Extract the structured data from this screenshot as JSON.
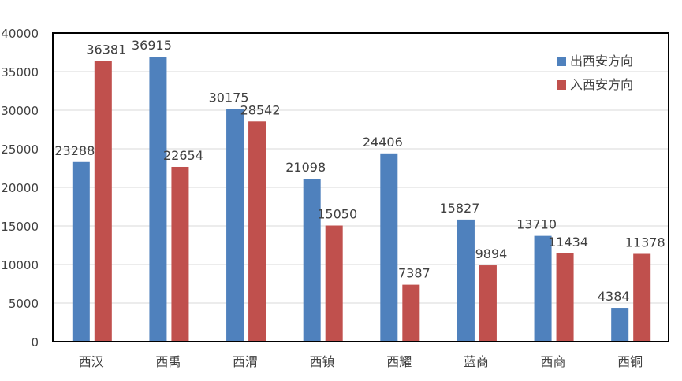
{
  "chart_data": {
    "type": "bar",
    "title": "",
    "xlabel": "",
    "ylabel": "",
    "categories": [
      "西汉",
      "西禹",
      "西渭",
      "西镇",
      "西耀",
      "蓝商",
      "西商",
      "西铜"
    ],
    "series": [
      {
        "name": "出西安方向",
        "color": "#4f81bd",
        "values": [
          23288,
          36915,
          30175,
          21098,
          24406,
          15827,
          13710,
          4384
        ]
      },
      {
        "name": "入西安方向",
        "color": "#c0504d",
        "values": [
          36381,
          22654,
          28542,
          15050,
          7387,
          9894,
          11434,
          11378
        ]
      }
    ],
    "ylim": [
      0,
      40000
    ],
    "yticks": [
      0,
      5000,
      10000,
      15000,
      20000,
      25000,
      30000,
      35000,
      40000
    ],
    "grid": true,
    "legend_position": "top-right",
    "data_labels": true
  }
}
